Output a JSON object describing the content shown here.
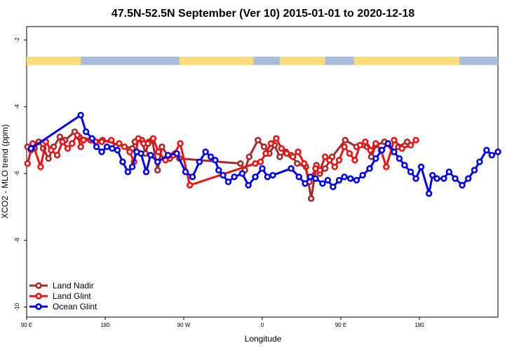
{
  "chart_data": {
    "type": "line",
    "title": "47.5N-52.5N September (Ver 10)   2015-01-01 to 2020-12-18",
    "xlabel": "Longitude",
    "ylabel": "XCO2 - MLO trend (ppm)",
    "xlim": [
      0,
      540
    ],
    "ylim": [
      -10.3,
      -1.6
    ],
    "x_ticks": [
      {
        "value": 0,
        "label": "90 E"
      },
      {
        "value": 90,
        "label": "180"
      },
      {
        "value": 180,
        "label": "90 W"
      },
      {
        "value": 270,
        "label": "0"
      },
      {
        "value": 360,
        "label": "90 E"
      },
      {
        "value": 450,
        "label": "180"
      }
    ],
    "y_ticks": [
      {
        "value": -2,
        "label": "-2"
      },
      {
        "value": -4,
        "label": "-4"
      },
      {
        "value": -6,
        "label": "-6"
      },
      {
        "value": -8,
        "label": "-8"
      },
      {
        "value": -10,
        "label": "-10"
      }
    ],
    "land_ocean_strip": {
      "y_top": -2.5,
      "y_bottom": -2.75,
      "ocean_color": "#a7bddb",
      "land_color": "#fddc80",
      "land_ranges": [
        [
          0,
          62
        ],
        [
          175,
          260
        ],
        [
          290,
          342
        ],
        [
          375,
          496
        ]
      ]
    },
    "series": [
      {
        "name": "Land Nadir",
        "color": "#a52a2a",
        "x": [
          1,
          5,
          9,
          14,
          19,
          25,
          31,
          38,
          44,
          55,
          60,
          76,
          87,
          121,
          124,
          132,
          136,
          140,
          144,
          150,
          155,
          164,
          170,
          175,
          245,
          250,
          255,
          265,
          272,
          278,
          284,
          290,
          297,
          303,
          310,
          320,
          326,
          332,
          336,
          342,
          350,
          365,
          378,
          390,
          395,
          400,
          410,
          420,
          426,
          436
        ],
        "y": [
          -5.2,
          -5.3,
          -5.25,
          -5.05,
          -5.25,
          -5.55,
          -5.2,
          -4.9,
          -5.0,
          -4.75,
          -4.9,
          -5.0,
          -5.0,
          -5.25,
          -5.05,
          -5.0,
          -5.4,
          -5.05,
          -5.0,
          -5.9,
          -5.2,
          -5.55,
          -5.4,
          -5.55,
          -5.7,
          -5.9,
          -5.5,
          -5.0,
          -5.2,
          -5.4,
          -5.15,
          -5.5,
          -5.35,
          -5.45,
          -5.7,
          -5.8,
          -6.75,
          -5.75,
          -6.0,
          -5.85,
          -5.5,
          -5.0,
          -5.2,
          -5.2,
          -5.5,
          -5.15,
          -5.05,
          -5.35,
          -5.2,
          -5.05
        ]
      },
      {
        "name": "Land Glint",
        "color": "#ee1111",
        "x": [
          1,
          7,
          16,
          22,
          28,
          35,
          41,
          47,
          52,
          58,
          62,
          65,
          73,
          79,
          86,
          97,
          102,
          106,
          112,
          118,
          123,
          128,
          134,
          139,
          145,
          151,
          159,
          168,
          176,
          187,
          262,
          268,
          274,
          280,
          286,
          292,
          298,
          305,
          311,
          318,
          324,
          331,
          336,
          342,
          347,
          353,
          358,
          364,
          370,
          376,
          382,
          388,
          394,
          400,
          406,
          412,
          421,
          430,
          440,
          446
        ],
        "y": [
          -5.7,
          -5.1,
          -5.8,
          -5.05,
          -5.3,
          -5.45,
          -5.05,
          -5.25,
          -5.1,
          -4.85,
          -5.2,
          -5.0,
          -5.0,
          -5.05,
          -5.05,
          -5.0,
          -5.2,
          -5.1,
          -5.2,
          -5.35,
          -5.65,
          -4.95,
          -5.1,
          -5.1,
          -4.95,
          -5.35,
          -5.6,
          -5.45,
          -5.1,
          -6.35,
          -5.7,
          -5.65,
          -5.4,
          -5.1,
          -4.95,
          -5.25,
          -5.4,
          -5.5,
          -5.35,
          -5.7,
          -6.25,
          -5.85,
          -5.9,
          -5.5,
          -5.6,
          -5.8,
          -5.6,
          -5.2,
          -5.4,
          -5.6,
          -5.15,
          -5.05,
          -5.3,
          -5.1,
          -5.3,
          -5.8,
          -5.0,
          -5.25,
          -5.15,
          -5.0
        ]
      },
      {
        "name": "Ocean Glint",
        "color": "#0000ee",
        "x": [
          5,
          62,
          68,
          75,
          80,
          86,
          92,
          98,
          104,
          110,
          116,
          121,
          126,
          131,
          137,
          142,
          150,
          162,
          172,
          182,
          190,
          198,
          205,
          211,
          216,
          220,
          225,
          231,
          238,
          247,
          254,
          262,
          270,
          276,
          282,
          303,
          312,
          319,
          325,
          331,
          339,
          345,
          351,
          358,
          364,
          371,
          378,
          385,
          393,
          400,
          407,
          414,
          421,
          427,
          433,
          440,
          446,
          452,
          461,
          465,
          470,
          478,
          484,
          491,
          499,
          506,
          513,
          519,
          527,
          533,
          540
        ],
        "y": [
          -5.25,
          -4.25,
          -4.75,
          -4.95,
          -5.2,
          -5.35,
          -5.2,
          -5.25,
          -5.3,
          -5.65,
          -5.95,
          -5.8,
          -5.35,
          -5.4,
          -5.95,
          -5.45,
          -5.65,
          -5.45,
          -5.4,
          -5.95,
          -6.1,
          -5.65,
          -5.35,
          -5.5,
          -5.6,
          -5.9,
          -6.05,
          -6.25,
          -6.1,
          -6.0,
          -6.35,
          -6.1,
          -5.85,
          -6.1,
          -6.05,
          -5.85,
          -6.1,
          -6.3,
          -6.1,
          -6.15,
          -6.3,
          -6.2,
          -6.4,
          -6.2,
          -6.1,
          -6.15,
          -6.2,
          -6.05,
          -5.85,
          -5.55,
          -5.3,
          -5.1,
          -5.35,
          -5.55,
          -5.75,
          -5.95,
          -6.15,
          -5.8,
          -6.6,
          -6.05,
          -6.15,
          -6.15,
          -5.95,
          -6.15,
          -6.35,
          -6.15,
          -5.9,
          -5.65,
          -5.3,
          -5.45,
          -5.35
        ]
      }
    ],
    "legend": {
      "placement": "bottom-left",
      "entries": [
        "Land Nadir",
        "Land Glint",
        "Ocean Glint"
      ]
    },
    "grid": false
  }
}
